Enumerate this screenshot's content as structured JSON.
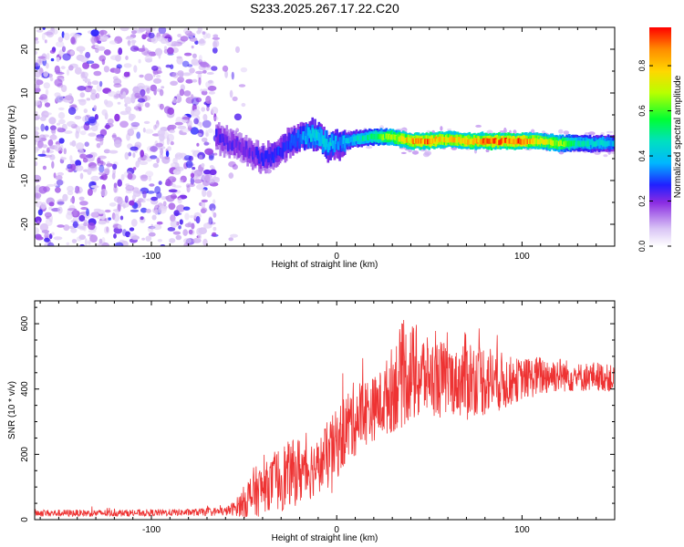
{
  "title": "S233.2025.267.17.22.C20",
  "colorbar": {
    "label": "Normalized spectral amplitude",
    "range": [
      0,
      0.97
    ],
    "ticks": [
      "0.0",
      "0.2",
      "0.4",
      "0.6",
      "0.8"
    ]
  },
  "chart_data": [
    {
      "type": "heatmap",
      "name": "spectrogram",
      "xlabel": "Height of straight line (km)",
      "ylabel": "Frequency (Hz)",
      "xlim": [
        -163,
        150
      ],
      "ylim": [
        -25,
        25
      ],
      "x_ticks": [
        -100,
        0,
        100
      ],
      "y_ticks": [
        -20,
        -10,
        0,
        10,
        20
      ],
      "noise_region_x": [
        -163,
        -65
      ],
      "ridge_centerline": {
        "x": [
          -65,
          -60,
          -55,
          -50,
          -45,
          -40,
          -35,
          -30,
          -25,
          -20,
          -15,
          -10,
          -5,
          0,
          5,
          10,
          20,
          30,
          40,
          50,
          60,
          70,
          80,
          90,
          100,
          110,
          120,
          130,
          140,
          150
        ],
        "freq": [
          0.5,
          -1,
          -2,
          -3,
          -4,
          -5,
          -4.5,
          -3,
          -1,
          0,
          0.5,
          0,
          -2,
          -1.5,
          -1,
          -0.5,
          0,
          0,
          -1,
          -1,
          -0.5,
          -1,
          -1,
          -1,
          -1,
          -1,
          -1.5,
          -1.5,
          -1.5,
          -1.5
        ]
      },
      "ridge_amplitude": {
        "x": [
          -65,
          -50,
          -35,
          -25,
          -15,
          -5,
          0,
          10,
          20,
          30,
          40,
          50,
          60,
          70,
          80,
          90,
          100,
          110,
          120,
          130,
          140,
          150
        ],
        "amp": [
          0.25,
          0.22,
          0.28,
          0.3,
          0.4,
          0.45,
          0.35,
          0.45,
          0.55,
          0.7,
          0.85,
          0.9,
          0.8,
          0.85,
          0.9,
          0.95,
          0.9,
          0.75,
          0.7,
          0.5,
          0.45,
          0.4
        ]
      }
    },
    {
      "type": "line",
      "name": "snr",
      "xlabel": "Height of straight line (km)",
      "ylabel": "SNR (10 * v/v)",
      "xlim": [
        -163,
        150
      ],
      "ylim": [
        0,
        670
      ],
      "x_ticks": [
        -100,
        0,
        100
      ],
      "y_ticks": [
        0,
        200,
        400,
        600
      ],
      "color": "#ee3333",
      "envelope": {
        "x": [
          -163,
          -120,
          -80,
          -60,
          -55,
          -50,
          -45,
          -40,
          -35,
          -30,
          -25,
          -20,
          -15,
          -10,
          -5,
          0,
          5,
          10,
          15,
          20,
          25,
          30,
          35,
          40,
          45,
          50,
          55,
          60,
          65,
          70,
          75,
          80,
          85,
          90,
          95,
          100,
          110,
          120,
          130,
          140,
          150
        ],
        "mean": [
          20,
          20,
          22,
          25,
          35,
          55,
          80,
          95,
          110,
          130,
          140,
          150,
          155,
          165,
          195,
          230,
          280,
          310,
          330,
          340,
          360,
          400,
          440,
          450,
          440,
          440,
          430,
          430,
          420,
          440,
          430,
          430,
          430,
          420,
          425,
          430,
          440,
          445,
          435,
          440,
          430
        ],
        "spread": [
          12,
          12,
          12,
          15,
          25,
          55,
          90,
          85,
          85,
          120,
          110,
          120,
          110,
          90,
          120,
          120,
          130,
          130,
          120,
          110,
          120,
          150,
          180,
          170,
          170,
          120,
          140,
          120,
          110,
          160,
          120,
          130,
          110,
          100,
          80,
          70,
          70,
          60,
          50,
          50,
          45
        ]
      }
    }
  ]
}
